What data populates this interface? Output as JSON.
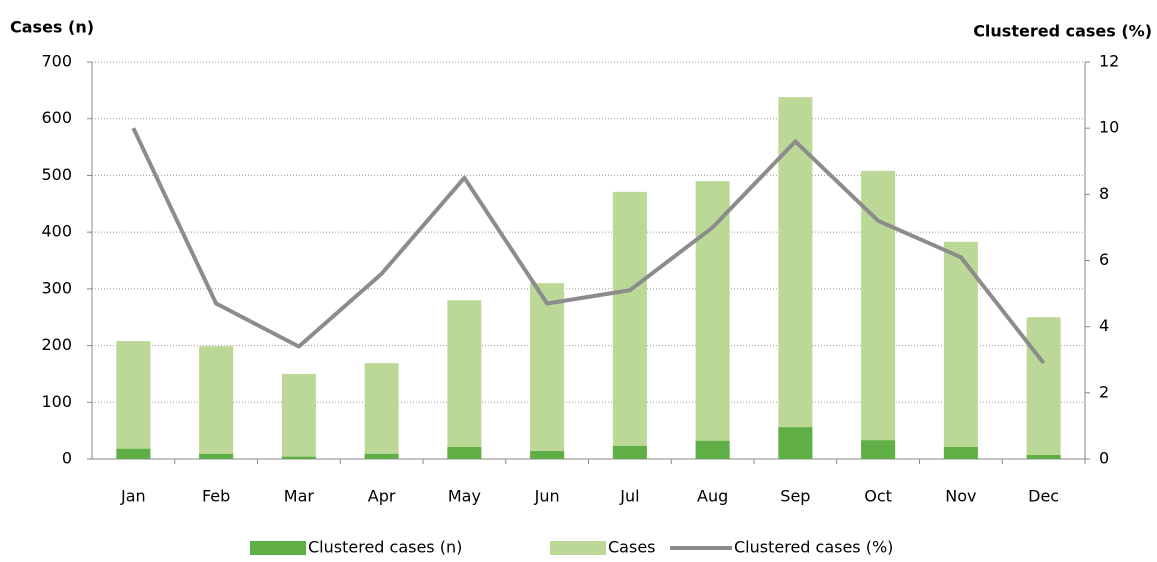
{
  "chart_data": {
    "type": "bar",
    "y_label": "Cases (n)",
    "y2_label": "Clustered cases (%)",
    "categories": [
      "Jan",
      "Feb",
      "Mar",
      "Apr",
      "May",
      "Jun",
      "Jul",
      "Aug",
      "Sep",
      "Oct",
      "Nov",
      "Dec"
    ],
    "series": [
      {
        "name": "Clustered cases (n)",
        "type": "bar",
        "color": "#5fae46",
        "values": [
          18,
          9,
          4,
          9,
          21,
          14,
          23,
          32,
          56,
          33,
          21,
          7
        ]
      },
      {
        "name": "Cases",
        "type": "bar",
        "color": "#bcd896",
        "values": [
          208,
          199,
          150,
          169,
          280,
          310,
          471,
          490,
          638,
          508,
          383,
          250
        ]
      },
      {
        "name": "Clustered cases (%)",
        "type": "line",
        "axis": "y2",
        "color": "#8c8c8c",
        "values": [
          10.0,
          4.7,
          3.4,
          5.6,
          8.5,
          4.7,
          5.1,
          7.0,
          9.6,
          7.2,
          6.1,
          2.9
        ]
      }
    ],
    "ylim": [
      0,
      700
    ],
    "yticks": [
      0,
      100,
      200,
      300,
      400,
      500,
      600,
      700
    ],
    "y2lim": [
      0,
      12
    ],
    "y2ticks": [
      0,
      2,
      4,
      6,
      8,
      10,
      12
    ],
    "grid": true,
    "legend": "bottom"
  }
}
